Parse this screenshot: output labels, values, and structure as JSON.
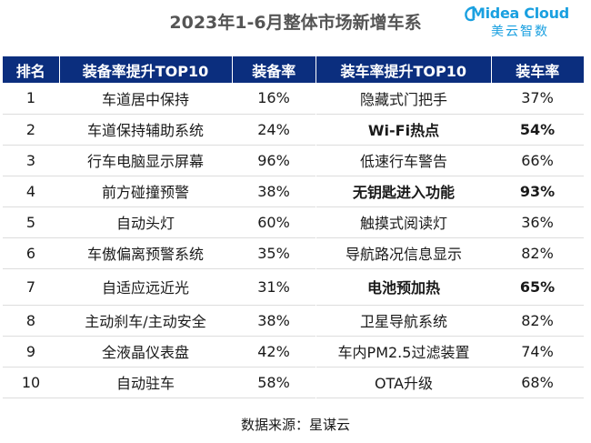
{
  "title": "2023年1-6月整体市场新增车系",
  "logo": {
    "brand": "Midea Cloud",
    "sub": "美云智数",
    "color": "#1aa0e0"
  },
  "header_color": "#0b2e7e",
  "left_table": {
    "headers": [
      "排名",
      "装备率提升TOP10",
      "装备率"
    ],
    "rows": [
      {
        "rank": "1",
        "feature": "车道居中保持",
        "rate": "16%"
      },
      {
        "rank": "2",
        "feature": "车道保持辅助系统",
        "rate": "24%"
      },
      {
        "rank": "3",
        "feature": "行车电脑显示屏幕",
        "rate": "96%"
      },
      {
        "rank": "4",
        "feature": "前方碰撞预警",
        "rate": "38%"
      },
      {
        "rank": "5",
        "feature": "自动头灯",
        "rate": "60%"
      },
      {
        "rank": "6",
        "feature": "车傲偏离预警系统",
        "rate": "35%"
      },
      {
        "rank": "7",
        "feature": "自适应远近光",
        "rate": "31%"
      },
      {
        "rank": "8",
        "feature": "主动刹车/主动安全",
        "rate": "38%"
      },
      {
        "rank": "9",
        "feature": "全液晶仪表盘",
        "rate": "42%"
      },
      {
        "rank": "10",
        "feature": "自动驻车",
        "rate": "58%"
      }
    ]
  },
  "right_table": {
    "headers": [
      "装车率提升TOP10",
      "装车率"
    ],
    "rows": [
      {
        "feature": "隐藏式门把手",
        "rate": "37%",
        "bold": false
      },
      {
        "feature": "Wi-Fi热点",
        "rate": "54%",
        "bold": true
      },
      {
        "feature": "低速行车警告",
        "rate": "66%",
        "bold": false
      },
      {
        "feature": "无钥匙进入功能",
        "rate": "93%",
        "bold": true
      },
      {
        "feature": "触摸式阅读灯",
        "rate": "36%",
        "bold": false
      },
      {
        "feature": "导航路况信息显示",
        "rate": "82%",
        "bold": false
      },
      {
        "feature": "电池预加热",
        "rate": "65%",
        "bold": true
      },
      {
        "feature": "卫星导航系统",
        "rate": "82%",
        "bold": false
      },
      {
        "feature": "车内PM2.5过滤装置",
        "rate": "74%",
        "bold": false
      },
      {
        "feature": "OTA升级",
        "rate": "68%",
        "bold": false
      }
    ]
  },
  "footer": "数据来源：星谋云"
}
